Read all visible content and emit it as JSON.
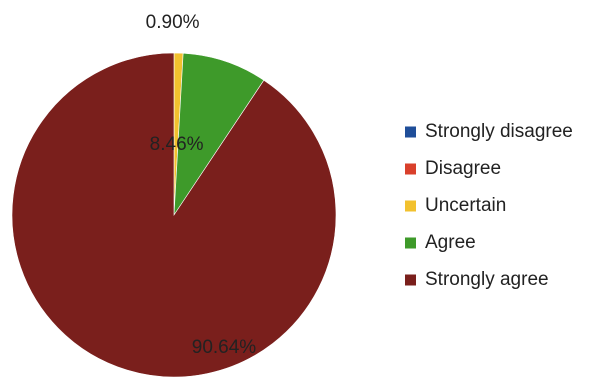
{
  "chart_data": {
    "type": "pie",
    "title": "",
    "legend_position": "right",
    "slices": [
      {
        "label": "Strongly disagree",
        "value": 0.0,
        "display": "",
        "color": "#1f4e99"
      },
      {
        "label": "Disagree",
        "value": 0.0,
        "display": "",
        "color": "#d9402b"
      },
      {
        "label": "Uncertain",
        "value": 0.9,
        "display": "0.90%",
        "color": "#f2c12e"
      },
      {
        "label": "Agree",
        "value": 8.46,
        "display": "8.46%",
        "color": "#3e9a2a"
      },
      {
        "label": "Strongly agree",
        "value": 90.64,
        "display": "90.64%",
        "color": "#7a1f1c"
      }
    ]
  }
}
